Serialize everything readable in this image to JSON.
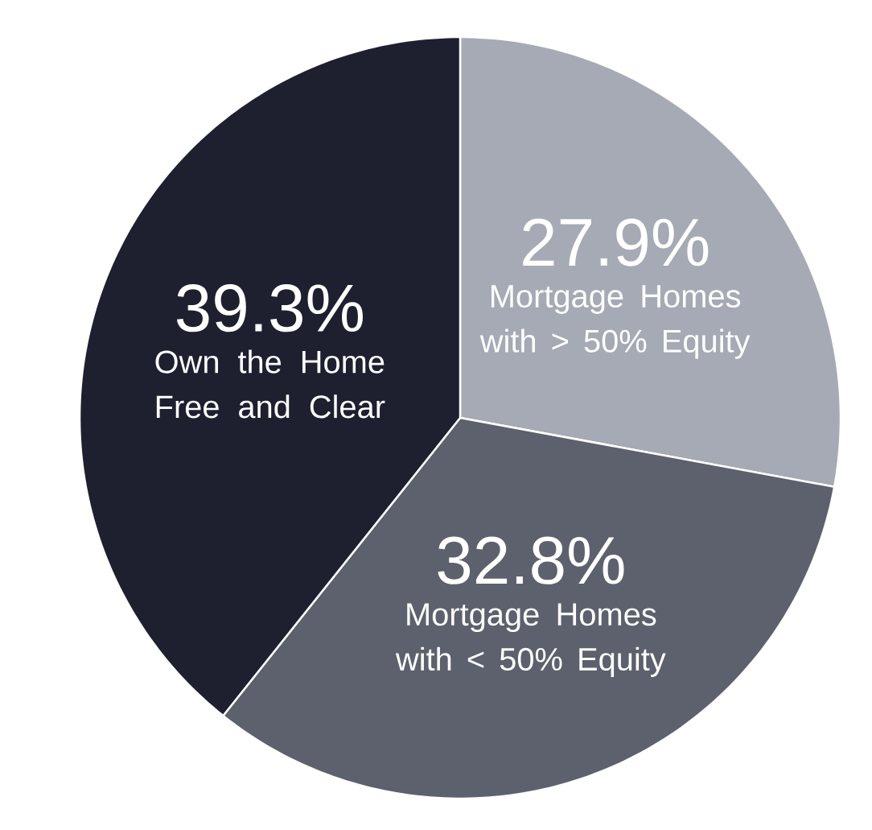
{
  "chart_data": {
    "type": "pie",
    "categories": [
      "Mortgage Homes with > 50% Equity",
      "Mortgage Homes with < 50% Equity",
      "Own the Home Free and Clear"
    ],
    "values": [
      27.9,
      32.8,
      39.3
    ],
    "value_labels": [
      "27.9%",
      "32.8%",
      "39.3%"
    ],
    "colors": [
      "#a5aab4",
      "#5d616d",
      "#1e2030"
    ]
  }
}
